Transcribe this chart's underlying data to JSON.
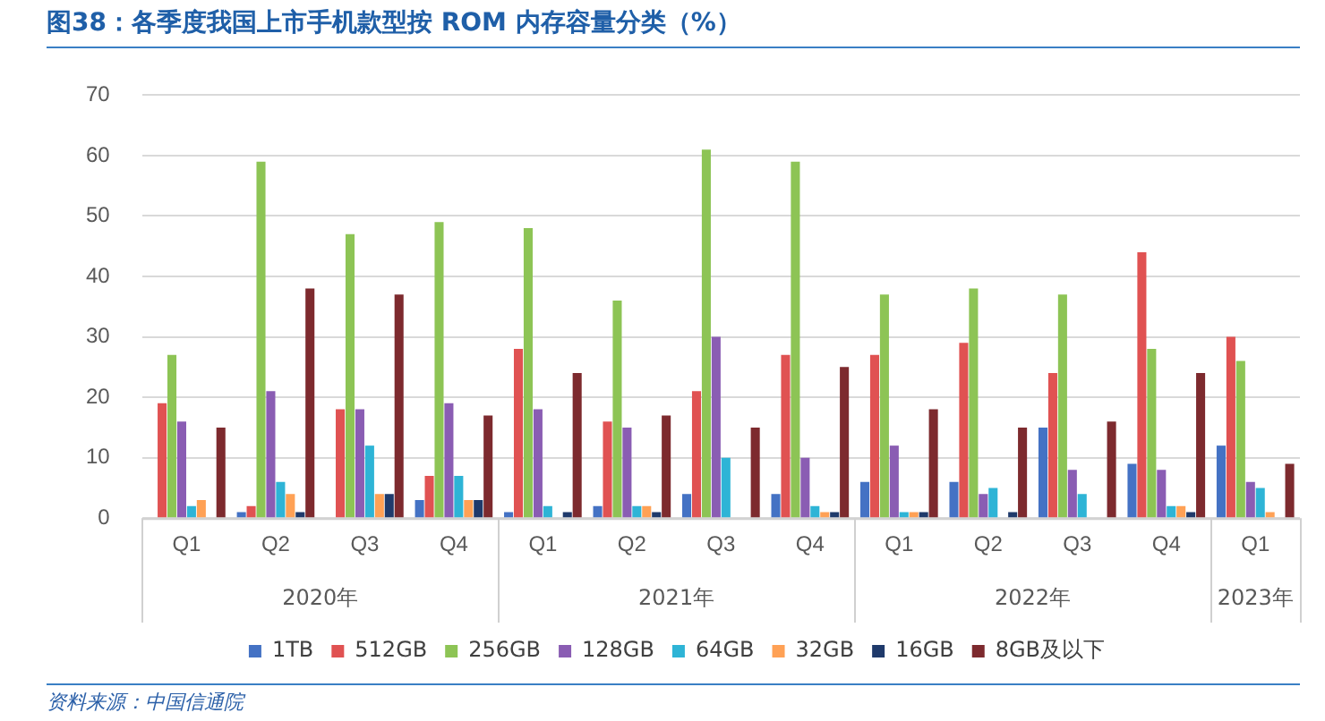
{
  "chart_data": {
    "type": "bar",
    "title": "图38：各季度我国上市手机款型按 ROM 内存容量分类（%）",
    "categories": [
      "Q1",
      "Q2",
      "Q3",
      "Q4",
      "Q1",
      "Q2",
      "Q3",
      "Q4",
      "Q1",
      "Q2",
      "Q3",
      "Q4",
      "Q1"
    ],
    "series": [
      {
        "name": "1TB",
        "color": "#4472c4",
        "values": [
          0,
          1,
          0,
          3,
          1,
          2,
          4,
          4,
          6,
          6,
          15,
          9,
          12
        ]
      },
      {
        "name": "512GB",
        "color": "#e05252",
        "values": [
          19,
          2,
          18,
          7,
          28,
          16,
          21,
          27,
          27,
          29,
          24,
          44,
          30
        ]
      },
      {
        "name": "256GB",
        "color": "#8dc455",
        "values": [
          27,
          59,
          47,
          49,
          48,
          36,
          61,
          59,
          37,
          38,
          37,
          28,
          26
        ]
      },
      {
        "name": "128GB",
        "color": "#8a5db3",
        "values": [
          16,
          21,
          18,
          19,
          18,
          15,
          30,
          10,
          12,
          4,
          8,
          8,
          6
        ]
      },
      {
        "name": "64GB",
        "color": "#2eb4d6",
        "values": [
          2,
          6,
          12,
          7,
          2,
          2,
          10,
          2,
          1,
          5,
          4,
          2,
          5
        ]
      },
      {
        "name": "32GB",
        "color": "#ffa155",
        "values": [
          3,
          4,
          4,
          3,
          0,
          2,
          0,
          1,
          1,
          0,
          0,
          2,
          1
        ]
      },
      {
        "name": "16GB",
        "color": "#1f3a6b",
        "values": [
          0,
          1,
          4,
          3,
          1,
          1,
          0,
          1,
          1,
          1,
          0,
          1,
          0
        ]
      },
      {
        "name": "8GB及以下",
        "color": "#7d2a2e",
        "values": [
          15,
          38,
          37,
          17,
          24,
          17,
          15,
          25,
          18,
          15,
          16,
          24,
          9
        ]
      }
    ],
    "ylim": [
      0,
      70
    ],
    "yticks": [
      0,
      10,
      20,
      30,
      40,
      50,
      60,
      70
    ],
    "grid": "y",
    "legend": "bottom",
    "annotations": [
      "2020年",
      "2021年",
      "2022年",
      "2023年",
      "资料来源：中国信通院"
    ]
  }
}
